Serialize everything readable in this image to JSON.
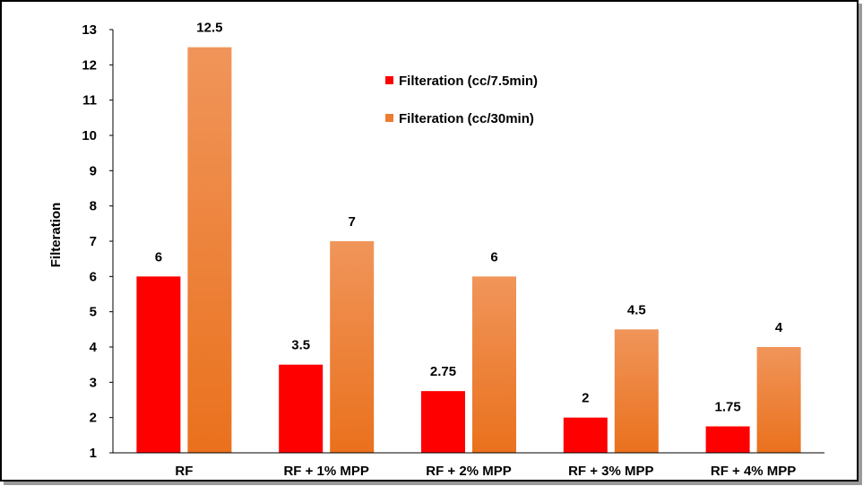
{
  "chart_data": {
    "type": "bar",
    "title": "",
    "xlabel": "",
    "ylabel": "Filteration",
    "ylim": [
      1,
      13
    ],
    "yticks": [
      1,
      2,
      3,
      4,
      5,
      6,
      7,
      8,
      9,
      10,
      11,
      12,
      13
    ],
    "grid": false,
    "legend_position": "top-center",
    "categories": [
      "RF",
      "RF + 1% MPP",
      "RF + 2% MPP",
      "RF + 3% MPP",
      "RF + 4% MPP"
    ],
    "series": [
      {
        "name": "Filteration (cc/7.5min)",
        "values": [
          6,
          3.5,
          2.75,
          2,
          1.75
        ],
        "labels": [
          "6",
          "3.5",
          "2.75",
          "2",
          "1.75"
        ],
        "color": "#ff0000"
      },
      {
        "name": "Filteration (cc/30min)",
        "values": [
          12.5,
          7,
          6,
          4.5,
          4
        ],
        "labels": [
          "12.5",
          "7",
          "6",
          "4.5",
          "4"
        ],
        "color": "#ee7d31"
      }
    ]
  }
}
